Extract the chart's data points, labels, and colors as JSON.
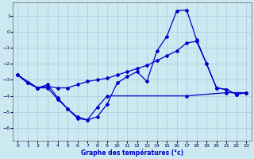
{
  "xlabel": "Graphe des températures (°c)",
  "background_color": "#cce8f0",
  "grid_color": "#aaccdd",
  "line_color": "#0000cc",
  "xlim": [
    -0.5,
    23.5
  ],
  "ylim": [
    -6.8,
    1.8
  ],
  "yticks": [
    1,
    0,
    -1,
    -2,
    -3,
    -4,
    -5,
    -6
  ],
  "xticks": [
    0,
    1,
    2,
    3,
    4,
    5,
    6,
    7,
    8,
    9,
    10,
    11,
    12,
    13,
    14,
    15,
    16,
    17,
    18,
    19,
    20,
    21,
    22,
    23
  ],
  "line1_x": [
    0,
    1,
    2,
    3,
    4,
    5,
    6,
    7,
    8,
    9,
    10,
    11,
    12,
    13,
    14,
    15,
    16,
    17,
    18,
    19,
    20,
    21,
    22,
    23
  ],
  "line1_y": [
    -2.7,
    -3.2,
    -3.5,
    -3.3,
    -4.1,
    -4.8,
    -5.4,
    -5.5,
    -5.3,
    -4.5,
    -3.2,
    -2.8,
    -2.5,
    -3.1,
    -1.2,
    -0.3,
    1.3,
    1.35,
    -0.5,
    -2.0,
    -3.5,
    -3.6,
    -3.9,
    -3.8
  ],
  "line2_x": [
    0,
    1,
    2,
    3,
    4,
    5,
    6,
    7,
    8,
    9,
    10,
    11,
    12,
    13,
    14,
    15,
    16,
    17,
    18,
    19,
    20,
    21,
    22,
    23
  ],
  "line2_y": [
    -2.7,
    -3.2,
    -3.5,
    -3.4,
    -3.5,
    -3.5,
    -3.3,
    -3.1,
    -3.0,
    -2.9,
    -2.7,
    -2.5,
    -2.3,
    -2.1,
    -1.8,
    -1.5,
    -1.2,
    -0.7,
    -0.6,
    -2.0,
    -3.5,
    -3.6,
    -3.9,
    -3.8
  ],
  "line3_x": [
    0,
    2,
    3,
    4,
    5,
    6,
    7,
    8,
    9,
    17,
    21,
    23
  ],
  "line3_y": [
    -2.7,
    -3.5,
    -3.5,
    -4.2,
    -4.8,
    -5.3,
    -5.5,
    -4.7,
    -4.0,
    -4.0,
    -3.8,
    -3.8
  ]
}
